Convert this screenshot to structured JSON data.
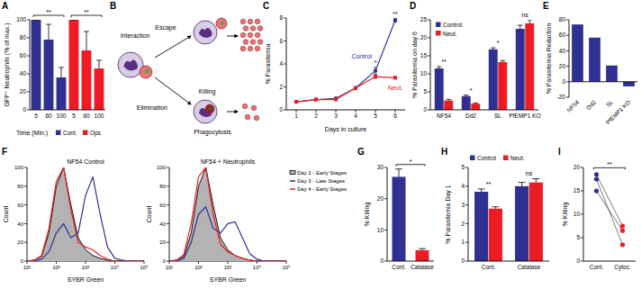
{
  "chart_data": [
    {
      "type": "bar",
      "panel_label": "A",
      "y_label": "GFP⁺ Neutrophils (% of max.)",
      "x_label": "Time (Min.)",
      "categories": [
        "5",
        "60",
        "100",
        "5",
        "60",
        "100"
      ],
      "series": [
        {
          "name": "Cont.",
          "color": "#2e3192",
          "values": [
            100,
            78,
            36,
            null,
            null,
            null
          ],
          "errors": [
            0,
            17,
            11,
            null,
            null,
            null
          ]
        },
        {
          "name": "Ops.",
          "color": "#ed1c24",
          "values": [
            null,
            null,
            null,
            100,
            66,
            46
          ],
          "errors": [
            null,
            null,
            null,
            0,
            21,
            9
          ]
        }
      ],
      "ylim": [
        0,
        100
      ],
      "yticks": [
        0,
        20,
        40,
        60,
        80,
        100
      ],
      "legend": "lower right",
      "significance": [
        {
          "text": "**",
          "from": 0,
          "to": 2
        },
        {
          "text": "**",
          "from": 3,
          "to": 5
        }
      ]
    },
    {
      "type": "diagram",
      "panel_label": "B",
      "nodes": [
        {
          "label": "Interaction"
        },
        {
          "label": "Escape"
        },
        {
          "label": "Killing"
        },
        {
          "label": "Elimination"
        },
        {
          "label": "Phagocytosis"
        }
      ]
    },
    {
      "type": "line",
      "panel_label": "C",
      "y_label": "% Parasitemia",
      "x_label": "Days in culture",
      "x": [
        1,
        2,
        3,
        4,
        5,
        6
      ],
      "xlim": [
        0.5,
        6.5
      ],
      "xticks": [
        1,
        2,
        3,
        4,
        5,
        6
      ],
      "ylim": [
        0,
        8
      ],
      "yticks": [
        0,
        2,
        4,
        6,
        8
      ],
      "legend": "inline",
      "series": [
        {
          "name": "Control",
          "color": "#2e3192",
          "marker": "circle",
          "values": [
            0.7,
            0.9,
            1.0,
            1.9,
            3.4,
            7.8
          ],
          "errors": [
            0.05,
            0.05,
            0.05,
            0.1,
            0.3,
            0.15
          ]
        },
        {
          "name": "Neut.",
          "color": "#ed1c24",
          "marker": "square",
          "values": [
            0.7,
            0.9,
            0.9,
            1.9,
            2.9,
            2.8
          ],
          "errors": [
            0.05,
            0.05,
            0.05,
            0.1,
            0.15,
            0.1
          ]
        }
      ],
      "significance": [
        {
          "text": "*",
          "x": 5
        },
        {
          "text": "**",
          "x": 6
        }
      ]
    },
    {
      "type": "bar",
      "panel_label": "D",
      "y_label": "% Parasitemia on day 6",
      "categories": [
        "NF54",
        "Dd2",
        "SL",
        "PfEMP1 KO"
      ],
      "series": [
        {
          "name": "Control",
          "color": "#2e3192",
          "values": [
            11.5,
            3.8,
            16.8,
            22.5
          ],
          "errors": [
            0.5,
            0.3,
            0.4,
            1.0
          ]
        },
        {
          "name": "Neut.",
          "color": "#ed1c24",
          "values": [
            2.6,
            1.7,
            13.3,
            24.0
          ],
          "errors": [
            0.3,
            0.2,
            0.4,
            1.0
          ]
        }
      ],
      "ylim": [
        0,
        25
      ],
      "yticks": [
        0,
        5,
        10,
        15,
        20,
        25
      ],
      "legend": "upper left",
      "significance": [
        {
          "text": "**",
          "category": 0
        },
        {
          "text": "*",
          "category": 1
        },
        {
          "text": "*",
          "category": 2
        },
        {
          "text": "ns",
          "category": 3
        }
      ]
    },
    {
      "type": "bar",
      "panel_label": "E",
      "y_label": "% Parasitemia Reduction",
      "categories": [
        "NF54",
        "Dd2",
        "SL",
        "PfEMP1 KO"
      ],
      "values": [
        74,
        57,
        21,
        -6
      ],
      "color": "#2e3192",
      "ylim": [
        -20,
        80
      ],
      "yticks": [
        -20,
        0,
        20,
        40,
        60,
        80
      ]
    },
    {
      "type": "line",
      "panel_label": "F",
      "title": "NF54 Control",
      "x_label": "SYBR Green",
      "y_label": "Count",
      "log": "x",
      "x": [
        10,
        17.8,
        31.6,
        56.2,
        100,
        177.8,
        316.2,
        562.3,
        1000,
        1778,
        3162,
        5623,
        10000,
        17783,
        31623,
        56234,
        100000
      ],
      "xlim": [
        10,
        100000
      ],
      "xticks": [
        {
          "value": 10,
          "label": "10¹"
        },
        {
          "value": 100,
          "label": "10²"
        },
        {
          "value": 1000,
          "label": "10³"
        },
        {
          "value": 10000,
          "label": "10⁴"
        },
        {
          "value": 100000,
          "label": "10⁵"
        }
      ],
      "ylim": [
        0,
        100
      ],
      "yticks": [
        0,
        20,
        40,
        60,
        80,
        100
      ],
      "series": [
        {
          "color": "#000000",
          "type": "area",
          "values": [
            0,
            1,
            5,
            30,
            80,
            100,
            60,
            25,
            12,
            6,
            3,
            1,
            0,
            0,
            0,
            0,
            0
          ]
        },
        {
          "color": "#2e3192",
          "type": "line",
          "values": [
            0,
            0,
            2,
            10,
            30,
            40,
            25,
            30,
            70,
            90,
            50,
            15,
            3,
            1,
            0,
            0,
            0
          ]
        },
        {
          "color": "#ed1c24",
          "type": "line",
          "values": [
            0,
            1,
            6,
            35,
            85,
            100,
            55,
            20,
            15,
            12,
            6,
            2,
            0,
            0,
            0,
            0,
            0
          ]
        }
      ]
    },
    {
      "type": "line",
      "title": "NF54 + Neutrophils",
      "x_label": "SYBR Green",
      "y_label": "Count",
      "log": "x",
      "x": [
        10,
        17.8,
        31.6,
        56.2,
        100,
        177.8,
        316.2,
        562.3,
        1000,
        1778,
        3162,
        5623,
        10000,
        17783,
        31623,
        56234,
        100000
      ],
      "xlim": [
        10,
        100000
      ],
      "xticks": [
        {
          "value": 10,
          "label": "10¹"
        },
        {
          "value": 100,
          "label": "10²"
        },
        {
          "value": 1000,
          "label": "10³"
        },
        {
          "value": 10000,
          "label": "10⁴"
        },
        {
          "value": 100000,
          "label": "10⁵"
        }
      ],
      "ylim": [
        0,
        100
      ],
      "yticks": [
        0,
        20,
        40,
        60,
        80,
        100
      ],
      "legend": "upper right",
      "series": [
        {
          "name": "Day 2 - Early Stages",
          "color": "#000000",
          "type": "area",
          "values": [
            0,
            1,
            5,
            30,
            80,
            100,
            60,
            25,
            12,
            6,
            3,
            1,
            0,
            0,
            0,
            0,
            0
          ]
        },
        {
          "name": "Day 3 - Late Stages",
          "color": "#2e3192",
          "type": "line",
          "values": [
            0,
            0,
            3,
            20,
            50,
            58,
            35,
            30,
            40,
            42,
            25,
            8,
            2,
            0,
            0,
            0,
            0
          ]
        },
        {
          "name": "Day 4 - Early Stages",
          "color": "#ed1c24",
          "type": "line",
          "values": [
            0,
            1,
            7,
            40,
            90,
            100,
            50,
            18,
            10,
            6,
            3,
            1,
            0,
            0,
            0,
            0,
            0
          ]
        }
      ]
    },
    {
      "type": "bar",
      "panel_label": "G",
      "y_label": "% Killing",
      "categories": [
        "Cont.",
        "Catalase"
      ],
      "values": [
        27,
        3.5
      ],
      "errors": [
        2.5,
        0.5
      ],
      "colors": [
        "#2e3192",
        "#ed1c24"
      ],
      "ylim": [
        0,
        30
      ],
      "yticks": [
        0,
        10,
        20,
        30
      ],
      "significance": [
        {
          "text": "*",
          "from": 0,
          "to": 1
        }
      ]
    },
    {
      "type": "bar",
      "panel_label": "H",
      "y_label": "% Parasitemia Day 1",
      "categories": [
        "Cont.",
        "Catalase"
      ],
      "series": [
        {
          "name": "Control",
          "color": "#2e3192",
          "values": [
            3.7,
            4.0
          ],
          "errors": [
            0.15,
            0.2
          ]
        },
        {
          "name": "Neut.",
          "color": "#ed1c24",
          "values": [
            2.8,
            4.2
          ],
          "errors": [
            0.1,
            0.2
          ]
        }
      ],
      "ylim": [
        0,
        5
      ],
      "yticks": [
        0,
        1,
        2,
        3,
        4,
        5
      ],
      "legend": "top",
      "significance": [
        {
          "text": "**",
          "category": 0
        },
        {
          "text": "ns",
          "category": 1
        }
      ]
    },
    {
      "type": "paired",
      "panel_label": "I",
      "y_label": "% Killing",
      "categories": [
        "Cont.",
        "Cytoc."
      ],
      "colors": [
        "#2e3192",
        "#ed1c24"
      ],
      "values": [
        [
          18.5,
          7.5
        ],
        [
          17.5,
          3.5
        ],
        [
          15,
          6.5
        ]
      ],
      "ylim": [
        0,
        20
      ],
      "yticks": [
        0,
        5,
        10,
        15,
        20
      ],
      "significance": [
        {
          "text": "**",
          "from": 0,
          "to": 1
        }
      ]
    }
  ]
}
